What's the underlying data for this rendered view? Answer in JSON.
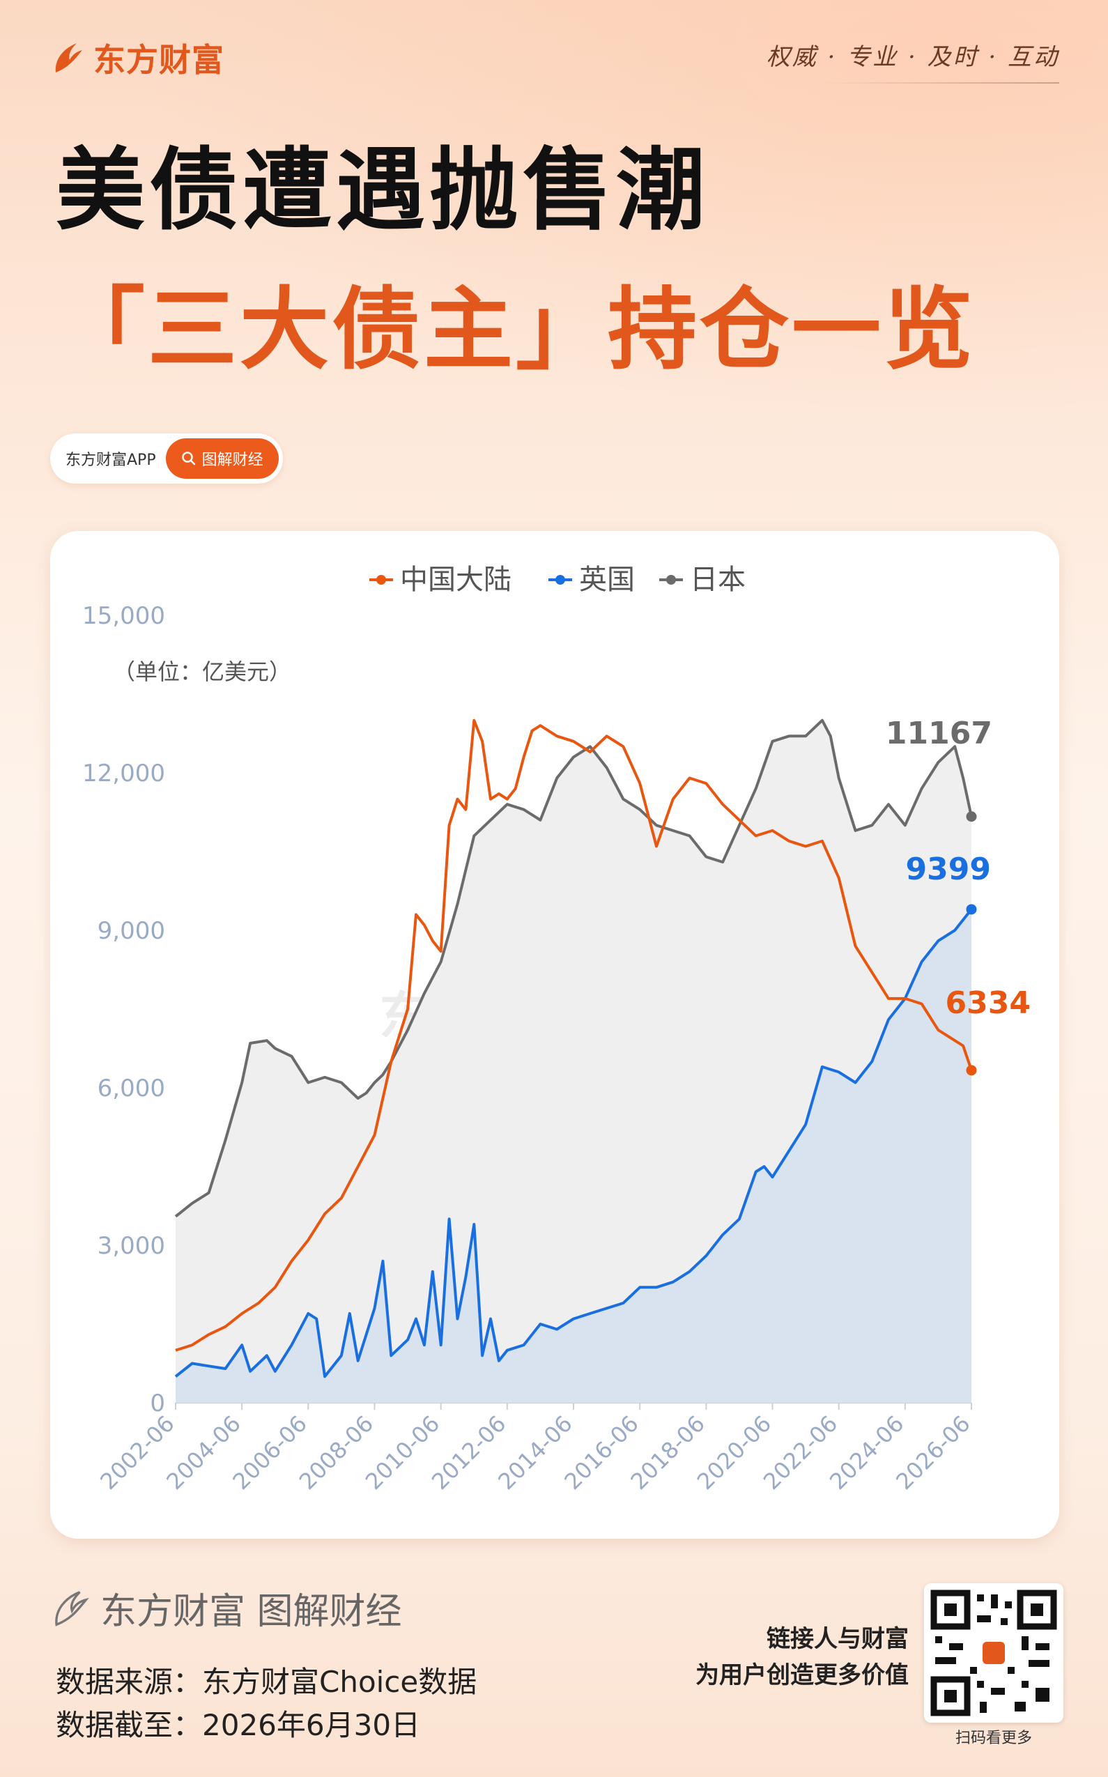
{
  "header": {
    "brand": "东方财富",
    "slogan": "权威 · 专业 · 及时 · 互动",
    "title_line1": "美债遭遇抛售潮",
    "title_line2": "「三大债主」持仓一览",
    "pill_app": "东方财富APP",
    "pill_search": "图解财经"
  },
  "chart_data": {
    "type": "line",
    "title": "",
    "unit_note": "（单位：亿美元）",
    "watermark": "东方财富",
    "ylim": [
      0,
      15000
    ],
    "yticks": [
      "0",
      "3,000",
      "6,000",
      "9,000",
      "12,000",
      "15,000"
    ],
    "xticks": [
      "2002-06",
      "2004-06",
      "2006-06",
      "2008-06",
      "2010-06",
      "2012-06",
      "2014-06",
      "2016-06",
      "2018-06",
      "2020-06",
      "2022-06",
      "2024-06",
      "2026-06"
    ],
    "x_start": "2002-06",
    "x_end": "2026-06",
    "legend": [
      "中国大陆",
      "英国",
      "日本"
    ],
    "legend_position": "top-center",
    "grid": false,
    "series": [
      {
        "name": "日本",
        "color": "#6b6b6b",
        "fill": "#efefef",
        "end_label": "11167",
        "points": [
          [
            "2002-06",
            3550
          ],
          [
            "2002-12",
            3800
          ],
          [
            "2003-06",
            4000
          ],
          [
            "2003-12",
            5000
          ],
          [
            "2004-06",
            6100
          ],
          [
            "2004-09",
            6850
          ],
          [
            "2005-03",
            6900
          ],
          [
            "2005-06",
            6750
          ],
          [
            "2005-12",
            6600
          ],
          [
            "2006-06",
            6100
          ],
          [
            "2006-12",
            6200
          ],
          [
            "2007-06",
            6100
          ],
          [
            "2007-12",
            5800
          ],
          [
            "2008-03",
            5900
          ],
          [
            "2008-06",
            6100
          ],
          [
            "2008-09",
            6250
          ],
          [
            "2008-12",
            6500
          ],
          [
            "2009-06",
            7100
          ],
          [
            "2009-12",
            7800
          ],
          [
            "2010-06",
            8400
          ],
          [
            "2010-12",
            9500
          ],
          [
            "2011-06",
            10800
          ],
          [
            "2011-12",
            11100
          ],
          [
            "2012-06",
            11400
          ],
          [
            "2012-12",
            11300
          ],
          [
            "2013-06",
            11100
          ],
          [
            "2013-12",
            11900
          ],
          [
            "2014-06",
            12300
          ],
          [
            "2014-12",
            12500
          ],
          [
            "2015-06",
            12100
          ],
          [
            "2015-12",
            11500
          ],
          [
            "2016-06",
            11300
          ],
          [
            "2016-12",
            11000
          ],
          [
            "2017-06",
            10900
          ],
          [
            "2017-12",
            10800
          ],
          [
            "2018-06",
            10400
          ],
          [
            "2018-12",
            10300
          ],
          [
            "2019-06",
            11000
          ],
          [
            "2019-12",
            11700
          ],
          [
            "2020-06",
            12600
          ],
          [
            "2020-12",
            12700
          ],
          [
            "2021-06",
            12700
          ],
          [
            "2021-12",
            13000
          ],
          [
            "2022-03",
            12700
          ],
          [
            "2022-06",
            11900
          ],
          [
            "2022-12",
            10900
          ],
          [
            "2023-06",
            11000
          ],
          [
            "2023-12",
            11400
          ],
          [
            "2024-06",
            11000
          ],
          [
            "2024-12",
            11700
          ],
          [
            "2025-06",
            12200
          ],
          [
            "2025-12",
            12500
          ],
          [
            "2026-03",
            11900
          ],
          [
            "2026-06",
            11167
          ]
        ]
      },
      {
        "name": "中国大陆",
        "color": "#e8560f",
        "end_label": "6334",
        "points": [
          [
            "2002-06",
            1000
          ],
          [
            "2002-12",
            1100
          ],
          [
            "2003-06",
            1300
          ],
          [
            "2003-12",
            1450
          ],
          [
            "2004-06",
            1700
          ],
          [
            "2004-12",
            1900
          ],
          [
            "2005-06",
            2200
          ],
          [
            "2005-12",
            2700
          ],
          [
            "2006-06",
            3100
          ],
          [
            "2006-12",
            3600
          ],
          [
            "2007-06",
            3900
          ],
          [
            "2007-12",
            4500
          ],
          [
            "2008-06",
            5100
          ],
          [
            "2008-12",
            6500
          ],
          [
            "2009-06",
            7500
          ],
          [
            "2009-09",
            9300
          ],
          [
            "2009-12",
            9100
          ],
          [
            "2010-03",
            8800
          ],
          [
            "2010-06",
            8600
          ],
          [
            "2010-09",
            11000
          ],
          [
            "2010-12",
            11500
          ],
          [
            "2011-03",
            11300
          ],
          [
            "2011-06",
            13000
          ],
          [
            "2011-09",
            12600
          ],
          [
            "2011-12",
            11500
          ],
          [
            "2012-03",
            11600
          ],
          [
            "2012-06",
            11500
          ],
          [
            "2012-09",
            11700
          ],
          [
            "2012-12",
            12300
          ],
          [
            "2013-03",
            12800
          ],
          [
            "2013-06",
            12900
          ],
          [
            "2013-12",
            12700
          ],
          [
            "2014-06",
            12600
          ],
          [
            "2014-12",
            12400
          ],
          [
            "2015-06",
            12700
          ],
          [
            "2015-12",
            12500
          ],
          [
            "2016-06",
            11800
          ],
          [
            "2016-12",
            10600
          ],
          [
            "2017-06",
            11500
          ],
          [
            "2017-12",
            11900
          ],
          [
            "2018-06",
            11800
          ],
          [
            "2018-12",
            11400
          ],
          [
            "2019-06",
            11100
          ],
          [
            "2019-12",
            10800
          ],
          [
            "2020-06",
            10900
          ],
          [
            "2020-12",
            10700
          ],
          [
            "2021-06",
            10600
          ],
          [
            "2021-12",
            10700
          ],
          [
            "2022-06",
            10000
          ],
          [
            "2022-12",
            8700
          ],
          [
            "2023-06",
            8200
          ],
          [
            "2023-12",
            7700
          ],
          [
            "2024-06",
            7700
          ],
          [
            "2024-12",
            7600
          ],
          [
            "2025-06",
            7100
          ],
          [
            "2025-12",
            6900
          ],
          [
            "2026-03",
            6800
          ],
          [
            "2026-06",
            6334
          ]
        ]
      },
      {
        "name": "英国",
        "color": "#1a6fe0",
        "fill": "#d9e3ef",
        "end_label": "9399",
        "points": [
          [
            "2002-06",
            500
          ],
          [
            "2002-12",
            750
          ],
          [
            "2003-06",
            700
          ],
          [
            "2003-12",
            650
          ],
          [
            "2004-06",
            1100
          ],
          [
            "2004-09",
            600
          ],
          [
            "2005-03",
            900
          ],
          [
            "2005-06",
            600
          ],
          [
            "2005-12",
            1100
          ],
          [
            "2006-06",
            1700
          ],
          [
            "2006-09",
            1600
          ],
          [
            "2006-12",
            500
          ],
          [
            "2007-06",
            900
          ],
          [
            "2007-09",
            1700
          ],
          [
            "2007-12",
            800
          ],
          [
            "2008-06",
            1800
          ],
          [
            "2008-09",
            2700
          ],
          [
            "2008-12",
            900
          ],
          [
            "2009-06",
            1200
          ],
          [
            "2009-09",
            1600
          ],
          [
            "2009-12",
            1100
          ],
          [
            "2010-03",
            2500
          ],
          [
            "2010-06",
            1100
          ],
          [
            "2010-09",
            3500
          ],
          [
            "2010-12",
            1600
          ],
          [
            "2011-03",
            2400
          ],
          [
            "2011-06",
            3400
          ],
          [
            "2011-09",
            900
          ],
          [
            "2011-12",
            1600
          ],
          [
            "2012-03",
            800
          ],
          [
            "2012-06",
            1000
          ],
          [
            "2012-12",
            1100
          ],
          [
            "2013-06",
            1500
          ],
          [
            "2013-12",
            1400
          ],
          [
            "2014-06",
            1600
          ],
          [
            "2014-12",
            1700
          ],
          [
            "2015-06",
            1800
          ],
          [
            "2015-12",
            1900
          ],
          [
            "2016-06",
            2200
          ],
          [
            "2016-12",
            2200
          ],
          [
            "2017-06",
            2300
          ],
          [
            "2017-12",
            2500
          ],
          [
            "2018-06",
            2800
          ],
          [
            "2018-12",
            3200
          ],
          [
            "2019-06",
            3500
          ],
          [
            "2019-12",
            4400
          ],
          [
            "2020-03",
            4500
          ],
          [
            "2020-06",
            4300
          ],
          [
            "2020-12",
            4800
          ],
          [
            "2021-06",
            5300
          ],
          [
            "2021-12",
            6400
          ],
          [
            "2022-06",
            6300
          ],
          [
            "2022-12",
            6100
          ],
          [
            "2023-06",
            6500
          ],
          [
            "2023-12",
            7300
          ],
          [
            "2024-06",
            7700
          ],
          [
            "2024-12",
            8400
          ],
          [
            "2025-06",
            8800
          ],
          [
            "2025-12",
            9000
          ],
          [
            "2026-06",
            9399
          ]
        ]
      }
    ]
  },
  "footer": {
    "brand_line": "东方财富 图解财经",
    "source": "数据来源：东方财富Choice数据",
    "date": "数据截至：2026年6月30日",
    "slogan_a": "链接人与财富",
    "slogan_b": "为用户创造更多价值",
    "qr_caption": "扫码看更多"
  }
}
